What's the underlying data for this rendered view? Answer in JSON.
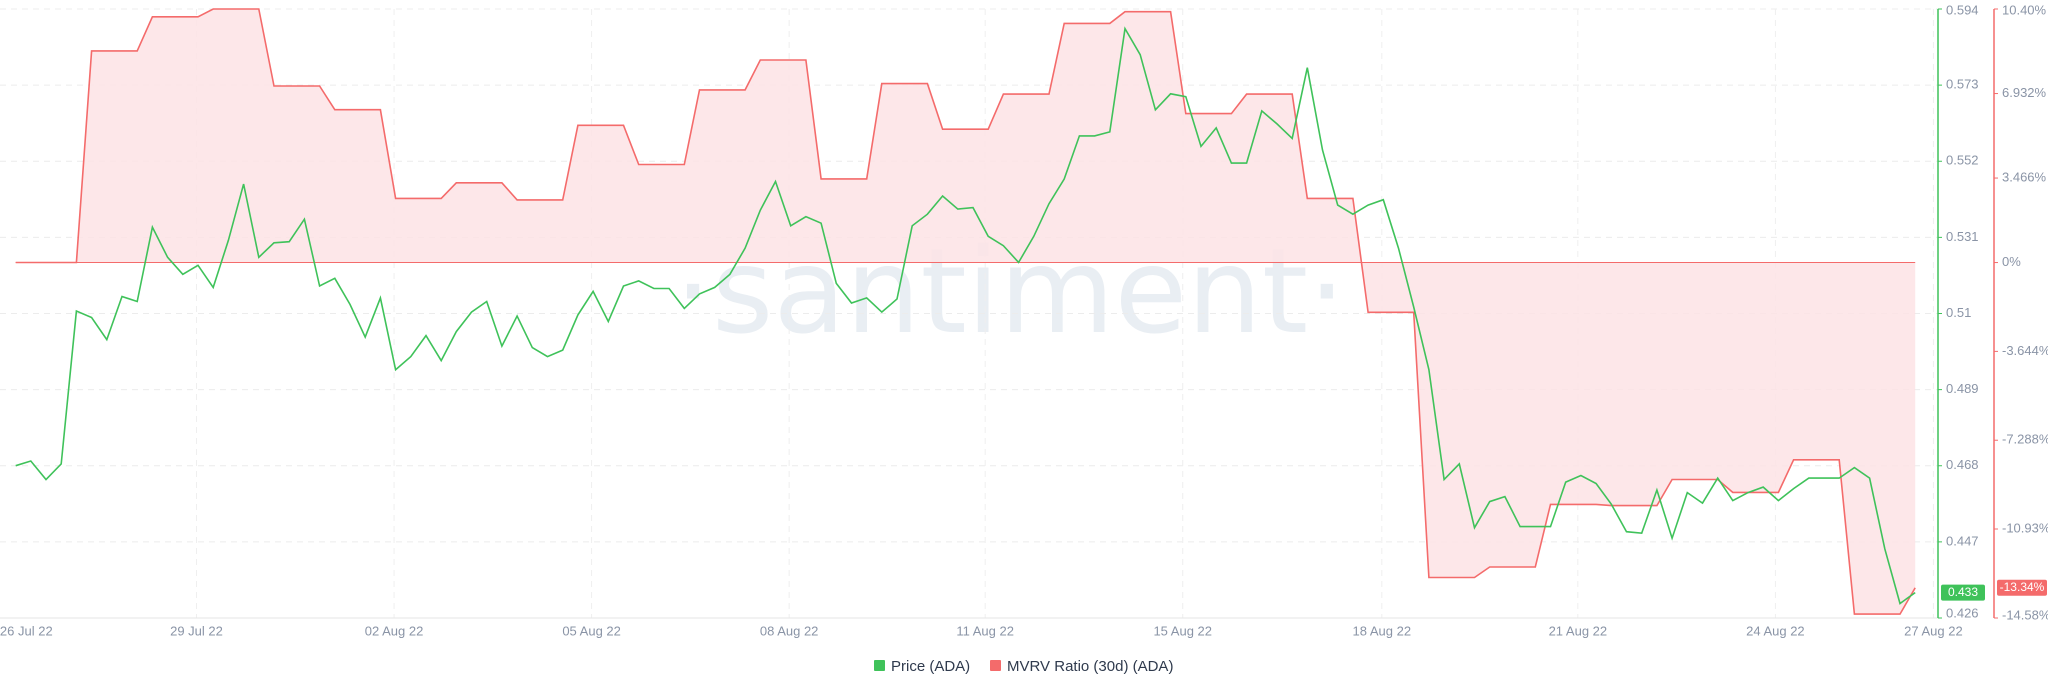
{
  "chart_data": {
    "type": "line",
    "x": [
      0,
      1,
      2,
      3,
      4,
      5,
      6,
      7,
      8,
      9,
      10,
      11,
      12,
      13,
      14,
      15,
      16,
      17,
      18,
      19,
      20,
      21,
      22,
      23,
      24,
      25,
      26,
      27,
      28,
      29,
      30,
      31,
      32,
      33,
      34,
      35,
      36,
      37,
      38,
      39,
      40,
      41,
      42,
      43,
      44,
      45,
      46,
      47,
      48,
      49,
      50,
      51,
      52,
      53,
      54,
      55,
      56,
      57,
      58,
      59,
      60,
      61,
      62,
      63,
      64,
      65,
      66,
      67,
      68,
      69,
      70,
      71,
      72,
      73,
      74,
      75,
      76,
      77,
      78,
      79,
      80,
      81,
      82,
      83,
      84,
      85,
      86,
      87,
      88,
      89,
      90,
      91,
      92,
      93,
      94,
      95,
      96,
      97,
      98,
      99,
      100,
      101,
      102,
      103,
      104,
      105,
      106,
      107,
      108,
      109,
      110,
      111,
      112,
      113,
      114,
      115,
      116,
      117,
      118,
      119,
      120,
      121,
      122,
      123,
      124,
      125
    ],
    "xlim": [
      -1.03,
      126.5
    ],
    "xticks": [
      {
        "value": 0.7,
        "label": "26 Jul 22"
      },
      {
        "value": 11.9,
        "label": "29 Jul 22"
      },
      {
        "value": 24.9,
        "label": "02 Aug 22"
      },
      {
        "value": 37.9,
        "label": "05 Aug 22"
      },
      {
        "value": 50.9,
        "label": "08 Aug 22"
      },
      {
        "value": 63.8,
        "label": "11 Aug 22"
      },
      {
        "value": 76.8,
        "label": "15 Aug 22"
      },
      {
        "value": 89.9,
        "label": "18 Aug 22"
      },
      {
        "value": 102.8,
        "label": "21 Aug 22"
      },
      {
        "value": 115.8,
        "label": "24 Aug 22"
      },
      {
        "value": 126.2,
        "label": "27 Aug 22"
      }
    ],
    "ylim": [
      0.426,
      0.594
    ],
    "yticks": [
      0.426,
      0.447,
      0.468,
      0.489,
      0.51,
      0.531,
      0.552,
      0.573,
      0.594
    ],
    "y2lim": [
      -14.58,
      10.4
    ],
    "y2ticks": [
      {
        "value": -14.58,
        "label": "-14.58%"
      },
      {
        "value": -10.93,
        "label": "-10.93%"
      },
      {
        "value": -7.288,
        "label": "-7.288%"
      },
      {
        "value": -3.644,
        "label": "-3.644%"
      },
      {
        "value": 0,
        "label": "0%"
      },
      {
        "value": 3.466,
        "label": "3.466%"
      },
      {
        "value": 6.932,
        "label": "6.932%"
      },
      {
        "value": 10.4,
        "label": "10.40%"
      }
    ],
    "grid": true,
    "watermark": "·santiment·",
    "series": [
      {
        "name": "Price (ADA)",
        "color": "#3fc25a",
        "axis": "y",
        "values": [
          0.468,
          0.4693,
          0.4642,
          0.4685,
          0.5107,
          0.5089,
          0.5028,
          0.5147,
          0.5133,
          0.5338,
          0.5255,
          0.5208,
          0.5233,
          0.5172,
          0.5302,
          0.5457,
          0.5255,
          0.5295,
          0.5298,
          0.536,
          0.5176,
          0.5197,
          0.5125,
          0.5035,
          0.5143,
          0.4945,
          0.4981,
          0.5039,
          0.497,
          0.505,
          0.5104,
          0.5133,
          0.501,
          0.5093,
          0.5006,
          0.4981,
          0.4999,
          0.5096,
          0.5161,
          0.5078,
          0.5176,
          0.519,
          0.5169,
          0.5169,
          0.5114,
          0.5154,
          0.5172,
          0.5208,
          0.528,
          0.5385,
          0.5464,
          0.5342,
          0.5367,
          0.5349,
          0.5183,
          0.5129,
          0.5143,
          0.5104,
          0.514,
          0.5342,
          0.5374,
          0.5424,
          0.5388,
          0.5392,
          0.5313,
          0.5287,
          0.5241,
          0.5313,
          0.5403,
          0.5471,
          0.559,
          0.559,
          0.5601,
          0.5886,
          0.5814,
          0.5662,
          0.5706,
          0.5698,
          0.5561,
          0.5612,
          0.5515,
          0.5515,
          0.5659,
          0.5623,
          0.5583,
          0.5778,
          0.5551,
          0.5399,
          0.5374,
          0.5399,
          0.5414,
          0.528,
          0.5118,
          0.4945,
          0.4642,
          0.4685,
          0.4509,
          0.4581,
          0.4595,
          0.4512,
          0.4512,
          0.4512,
          0.4635,
          0.4653,
          0.4631,
          0.4574,
          0.4498,
          0.4494,
          0.4613,
          0.448,
          0.4606,
          0.4577,
          0.4646,
          0.4584,
          0.4606,
          0.4621,
          0.4584,
          0.4617,
          0.4646,
          0.4646,
          0.4646,
          0.4675,
          0.4646,
          0.4451,
          0.43,
          0.433
        ]
      },
      {
        "name": "MVRV Ratio (30d) (ADA)",
        "color": "#f46b6b",
        "fill": "#fde3e5",
        "axis": "y2",
        "values": [
          0,
          0,
          0,
          0,
          0,
          8.68,
          8.68,
          8.68,
          8.68,
          10.08,
          10.08,
          10.08,
          10.08,
          10.4,
          10.4,
          10.4,
          10.4,
          7.24,
          7.24,
          7.24,
          7.24,
          6.27,
          6.27,
          6.27,
          6.27,
          2.63,
          2.63,
          2.63,
          2.63,
          3.27,
          3.27,
          3.27,
          3.27,
          2.57,
          2.57,
          2.57,
          2.57,
          5.63,
          5.63,
          5.63,
          5.63,
          4.02,
          4.02,
          4.02,
          4.02,
          7.08,
          7.08,
          7.08,
          7.08,
          8.31,
          8.31,
          8.31,
          8.31,
          3.43,
          3.43,
          3.43,
          3.43,
          7.34,
          7.34,
          7.34,
          7.34,
          5.47,
          5.47,
          5.47,
          5.47,
          6.91,
          6.91,
          6.91,
          6.91,
          9.81,
          9.81,
          9.81,
          9.81,
          10.29,
          10.29,
          10.29,
          10.29,
          6.11,
          6.11,
          6.11,
          6.11,
          6.91,
          6.91,
          6.91,
          6.91,
          2.63,
          2.63,
          2.63,
          2.63,
          -2.04,
          -2.04,
          -2.04,
          -2.04,
          -12.92,
          -12.92,
          -12.92,
          -12.92,
          -12.49,
          -12.49,
          -12.49,
          -12.49,
          -9.92,
          -9.92,
          -9.92,
          -9.92,
          -9.97,
          -9.97,
          -9.97,
          -9.97,
          -8.9,
          -8.9,
          -8.9,
          -8.9,
          -9.43,
          -9.43,
          -9.43,
          -9.43,
          -8.09,
          -8.09,
          -8.09,
          -8.09,
          -14.42,
          -14.42,
          -14.42,
          -14.42,
          -13.34
        ],
        "value_labels": [
          null,
          null,
          null,
          null,
          null,
          null,
          null,
          null,
          null,
          null,
          null,
          null,
          null,
          null,
          null,
          null,
          null,
          null,
          null,
          null,
          null,
          null,
          null,
          null,
          null,
          null,
          null,
          null,
          null,
          null,
          null,
          null,
          null,
          null,
          null,
          null,
          null,
          null,
          null,
          null,
          null,
          null,
          null,
          null,
          null,
          null,
          null,
          null,
          null,
          null,
          null,
          null,
          null,
          null,
          null,
          null,
          null,
          null,
          null,
          null,
          null,
          null,
          null,
          null,
          null,
          null,
          null,
          null,
          null,
          null,
          null,
          null,
          null,
          null,
          null,
          null,
          null,
          null,
          null,
          null,
          null,
          null,
          null,
          null,
          null,
          null,
          null,
          null,
          null,
          null,
          null,
          null,
          null,
          null,
          null,
          null,
          null,
          null,
          null,
          null,
          null,
          null,
          null,
          null,
          null,
          null,
          null,
          null,
          null,
          null,
          null,
          null,
          null,
          null,
          null,
          null,
          null,
          null,
          null,
          null,
          null,
          null,
          null,
          null,
          null,
          "-13.34%"
        ]
      }
    ]
  }
}
